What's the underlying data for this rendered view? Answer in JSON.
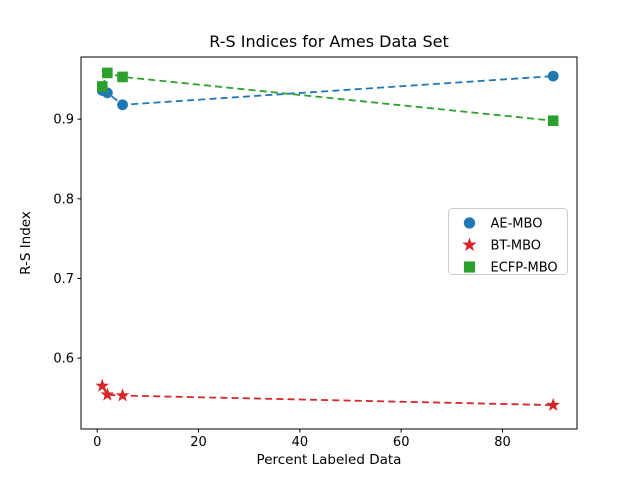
{
  "figure": {
    "title": "R-S Indices for Ames Data Set",
    "xlabel": "Percent Labeled Data",
    "ylabel": "R-S Index"
  },
  "chart_data": {
    "type": "scatter",
    "title": "R-S Indices for Ames Data Set",
    "xlabel": "Percent Labeled Data",
    "ylabel": "R-S Index",
    "xlim": [
      -3.2,
      94.7
    ],
    "ylim": [
      0.511,
      0.978
    ],
    "xticks": [
      0,
      20,
      40,
      60,
      80
    ],
    "yticks": [
      0.6,
      0.7,
      0.8,
      0.9
    ],
    "grid": false,
    "line_style": "dashed",
    "legend_position": "center-right",
    "legend_entries": [
      "AE-MBO",
      "BT-MBO",
      "ECFP-MBO"
    ],
    "series": [
      {
        "name": "AE-MBO",
        "color": "#1f77b4",
        "marker": "circle",
        "x": [
          1,
          2,
          5,
          90
        ],
        "y": [
          0.936,
          0.933,
          0.918,
          0.954
        ]
      },
      {
        "name": "BT-MBO",
        "color": "#d62728",
        "marker": "star",
        "x": [
          1,
          2,
          5,
          90
        ],
        "y": [
          0.565,
          0.554,
          0.553,
          0.541
        ]
      },
      {
        "name": "ECFP-MBO",
        "color": "#2ca02c",
        "marker": "square",
        "x": [
          1,
          2,
          5,
          90
        ],
        "y": [
          0.941,
          0.958,
          0.953,
          0.898
        ]
      }
    ]
  }
}
